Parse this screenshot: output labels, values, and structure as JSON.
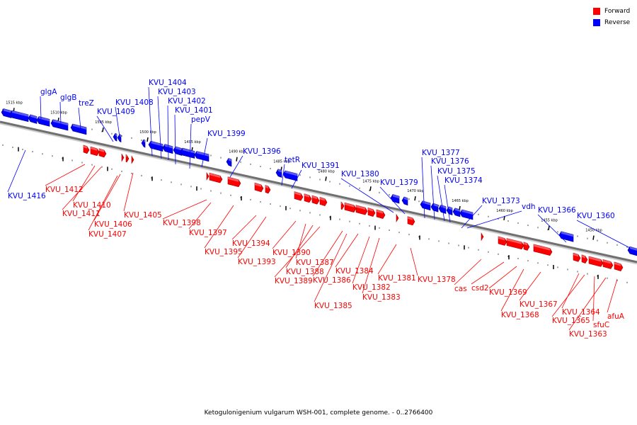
{
  "caption": "Ketogulonigenium vulgarum WSH-001, complete genome. - 0..2766400",
  "legend": [
    {
      "label": "Forward",
      "color": "#ff0000"
    },
    {
      "label": "Reverse",
      "color": "#0000ff"
    }
  ],
  "colors": {
    "forward": "#ff0000",
    "reverse": "#0000ff",
    "backbone": "#707070"
  },
  "ticks": [
    "1515 kbp",
    "1510 kbp",
    "1505 kbp",
    "1500 kbp",
    "1495 kbp",
    "1490 kbp",
    "1485 kbp",
    "1480 kbp",
    "1475 kbp",
    "1470 kbp",
    "1465 kbp",
    "1460 kbp",
    "1455 kbp",
    "1450 kbp"
  ],
  "reverse_genes": [
    "glgA",
    "glgB",
    "treZ",
    "KVU_1408",
    "KVU_1409",
    "KVU_1404",
    "KVU_1403",
    "KVU_1402",
    "KVU_1401",
    "pepV",
    "KVU_1399",
    "KVU_1396",
    "tetR",
    "KVU_1391",
    "KVU_1380",
    "KVU_1379",
    "KVU_1377",
    "KVU_1376",
    "KVU_1375",
    "KVU_1374",
    "KVU_1373",
    "vdh",
    "KVU_1366",
    "KVU_1360",
    "KVU_1416"
  ],
  "forward_genes": [
    "KVU_1412",
    "KVU_1410",
    "KVU_1411",
    "KVU_1406",
    "KVU_1407",
    "KVU_1405",
    "KVU_1398",
    "KVU_1397",
    "KVU_1395",
    "KVU_1394",
    "KVU_1393",
    "KVU_1390",
    "KVU_1387",
    "KVU_1388",
    "KVU_1389",
    "KVU_1386",
    "KVU_1385",
    "KVU_1384",
    "KVU_1382",
    "KVU_1383",
    "KVU_1381",
    "KVU_1378",
    "cas",
    "csd2",
    "KVU_1369",
    "KVU_1368",
    "KVU_1367",
    "KVU_1364",
    "KVU_1365",
    "sfuC",
    "KVU_1363",
    "afuA"
  ]
}
